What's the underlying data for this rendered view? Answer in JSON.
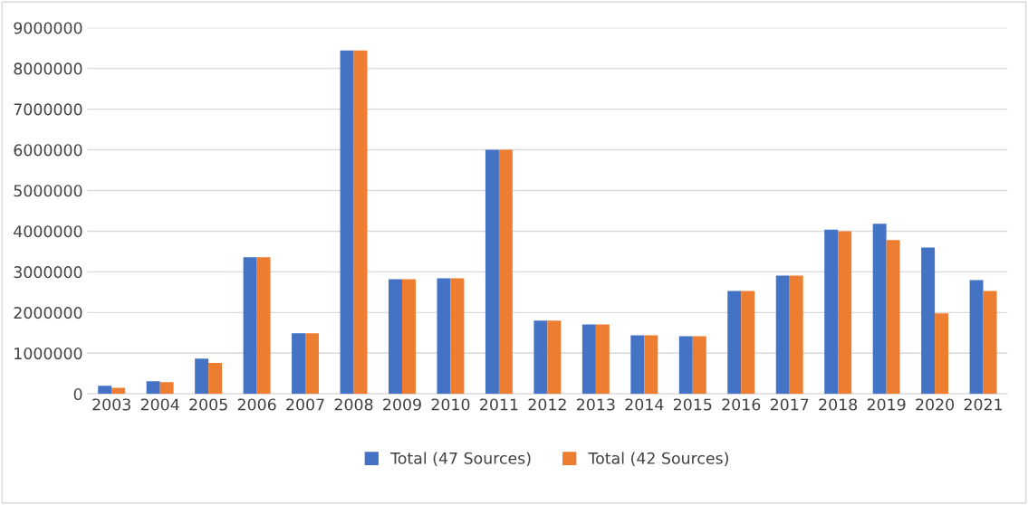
{
  "chart_data": {
    "type": "bar",
    "categories": [
      "2003",
      "2004",
      "2005",
      "2006",
      "2007",
      "2008",
      "2009",
      "2010",
      "2011",
      "2012",
      "2013",
      "2014",
      "2015",
      "2016",
      "2017",
      "2018",
      "2019",
      "2020",
      "2021"
    ],
    "series": [
      {
        "name": "Total (47 Sources)",
        "color": "#4472c4",
        "values": [
          200000,
          310000,
          870000,
          3360000,
          1490000,
          8440000,
          2820000,
          2840000,
          6000000,
          1800000,
          1710000,
          1440000,
          1420000,
          2530000,
          2910000,
          4040000,
          4180000,
          3600000,
          2800000
        ]
      },
      {
        "name": "Total (42 Sources)",
        "color": "#ed7d31",
        "values": [
          150000,
          290000,
          760000,
          3360000,
          1490000,
          8440000,
          2820000,
          2840000,
          6000000,
          1800000,
          1710000,
          1440000,
          1420000,
          2530000,
          2910000,
          4000000,
          3780000,
          1980000,
          2530000
        ]
      }
    ],
    "ylim": [
      0,
      9000000
    ],
    "yticks": [
      0,
      1000000,
      2000000,
      3000000,
      4000000,
      5000000,
      6000000,
      7000000,
      8000000,
      9000000
    ],
    "grid": "y",
    "legend": "bottom"
  }
}
